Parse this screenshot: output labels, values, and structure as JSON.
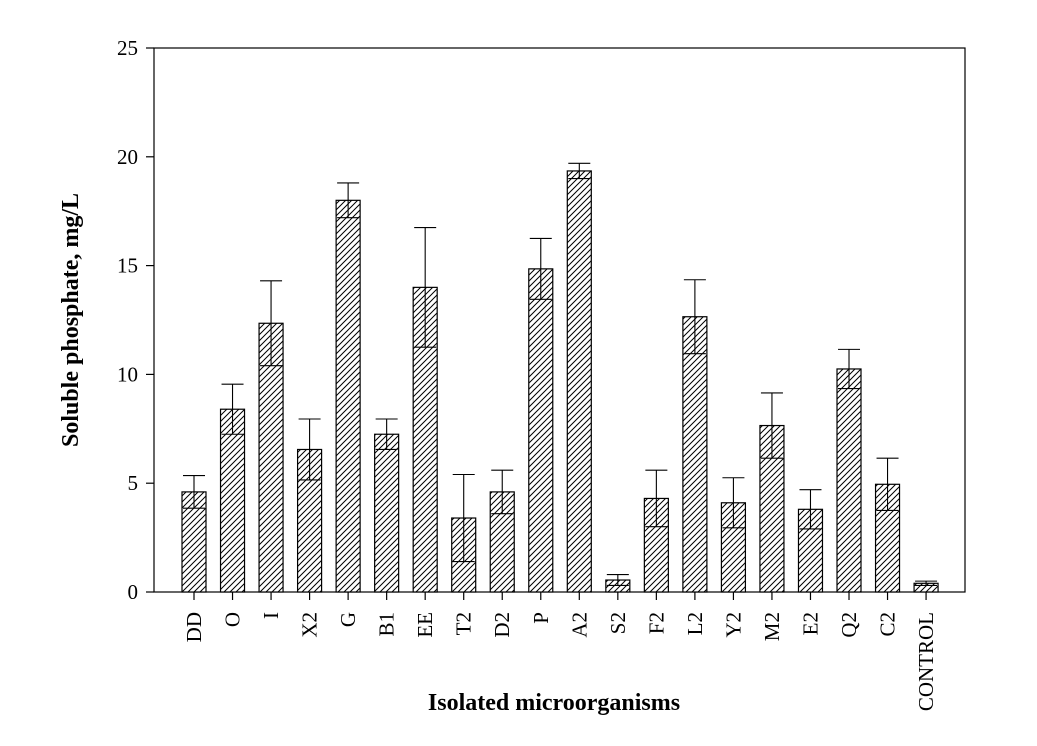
{
  "chart_data": {
    "type": "bar",
    "title": "",
    "xlabel": "Isolated microorganisms",
    "ylabel": "Soluble phosphate, mg/L",
    "ylim": [
      0,
      25
    ],
    "yticks": [
      0,
      5,
      10,
      15,
      20,
      25
    ],
    "grid": false,
    "bar_pattern": "diagonal-hatch",
    "bar_color": "#ffffff",
    "edge_color": "#000000",
    "categories": [
      "DD",
      "O",
      "I",
      "X2",
      "G",
      "B1",
      "EE",
      "T2",
      "D2",
      "P",
      "A2",
      "S2",
      "F2",
      "L2",
      "Y2",
      "M2",
      "E2",
      "Q2",
      "C2",
      "CONTROL"
    ],
    "values": [
      4.6,
      8.4,
      12.35,
      6.55,
      18.0,
      7.25,
      14.0,
      3.4,
      4.6,
      14.85,
      19.35,
      0.55,
      4.3,
      12.65,
      4.1,
      7.65,
      3.8,
      10.25,
      4.95,
      0.4
    ],
    "errors": [
      0.75,
      1.15,
      1.95,
      1.4,
      0.8,
      0.7,
      2.75,
      2.0,
      1.0,
      1.4,
      0.35,
      0.25,
      1.3,
      1.7,
      1.15,
      1.5,
      0.9,
      0.9,
      1.2,
      0.1
    ]
  }
}
